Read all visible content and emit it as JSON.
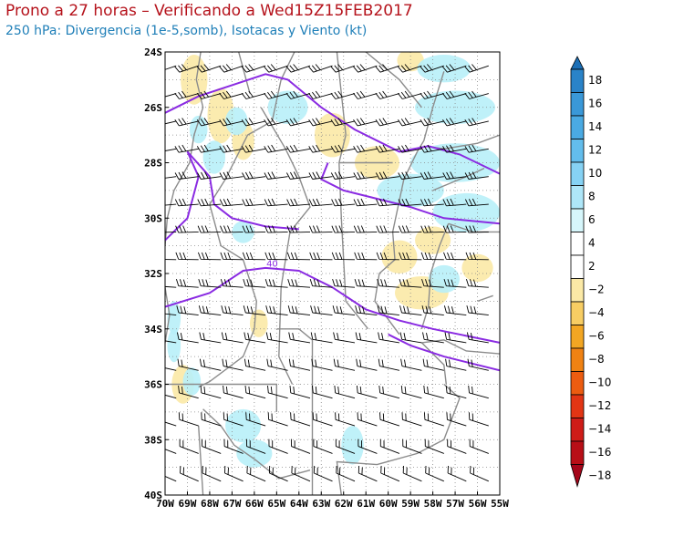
{
  "header": {
    "title": "Prono a 27 horas – Verificando a Wed15Z15FEB2017",
    "subtitle": "250 hPa: Divergencia (1e-5,somb), Isotacas y Viento (kt)"
  },
  "map": {
    "lat_range": [
      -40,
      -24
    ],
    "lon_range": [
      -70,
      -55
    ],
    "lat_labels": [
      "24S",
      "26S",
      "28S",
      "30S",
      "32S",
      "34S",
      "36S",
      "38S",
      "40S"
    ],
    "lon_labels": [
      "70W",
      "69W",
      "68W",
      "67W",
      "66W",
      "65W",
      "64W",
      "63W",
      "62W",
      "61W",
      "60W",
      "59W",
      "58W",
      "57W",
      "56W",
      "55W"
    ],
    "grid": "dotted every 1 degree",
    "isotach_contour_label": "40",
    "colors": {
      "isotach": "#8a2be2",
      "borders": "#8c8c8c",
      "wind_barbs": "#000000",
      "divergence_positive": "#b8f0f8",
      "convergence_negative": "#fbe9a6"
    }
  },
  "colorbar": {
    "labels": [
      "18",
      "16",
      "14",
      "12",
      "10",
      "8",
      "6",
      "4",
      "2",
      "−2",
      "−4",
      "−6",
      "−8",
      "−10",
      "−12",
      "−14",
      "−16",
      "−18"
    ],
    "colors_top_to_bottom": [
      "#1c6fb6",
      "#2a83c8",
      "#3a98d8",
      "#4aaae3",
      "#63bdec",
      "#86d2f4",
      "#aee6f8",
      "#d6f6fb",
      "#ffffff",
      "#ffffff",
      "#fbe9a6",
      "#f7cd63",
      "#f2a623",
      "#f08213",
      "#ec5c10",
      "#e23514",
      "#cf1c18",
      "#b80f17",
      "#a4061a"
    ]
  }
}
